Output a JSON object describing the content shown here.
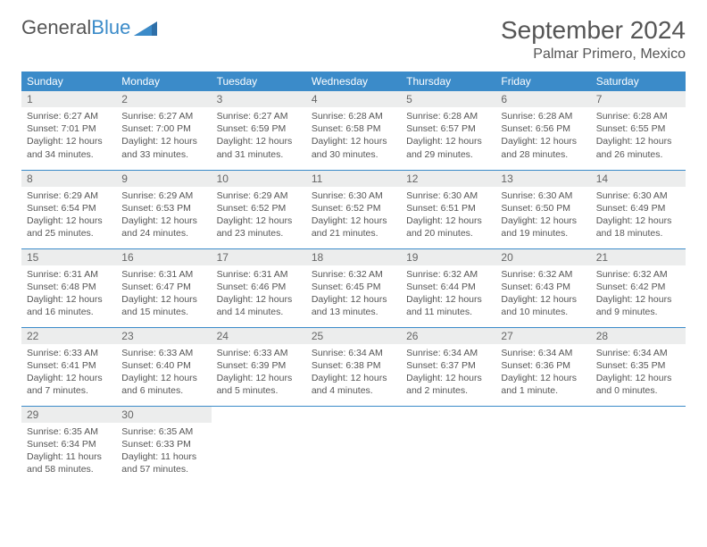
{
  "brand": {
    "part1": "General",
    "part2": "Blue"
  },
  "title": "September 2024",
  "location": "Palmar Primero, Mexico",
  "header_bg": "#3b8bc9",
  "day_names": [
    "Sunday",
    "Monday",
    "Tuesday",
    "Wednesday",
    "Thursday",
    "Friday",
    "Saturday"
  ],
  "weeks": [
    [
      {
        "n": "1",
        "sr": "Sunrise: 6:27 AM",
        "ss": "Sunset: 7:01 PM",
        "d1": "Daylight: 12 hours",
        "d2": "and 34 minutes."
      },
      {
        "n": "2",
        "sr": "Sunrise: 6:27 AM",
        "ss": "Sunset: 7:00 PM",
        "d1": "Daylight: 12 hours",
        "d2": "and 33 minutes."
      },
      {
        "n": "3",
        "sr": "Sunrise: 6:27 AM",
        "ss": "Sunset: 6:59 PM",
        "d1": "Daylight: 12 hours",
        "d2": "and 31 minutes."
      },
      {
        "n": "4",
        "sr": "Sunrise: 6:28 AM",
        "ss": "Sunset: 6:58 PM",
        "d1": "Daylight: 12 hours",
        "d2": "and 30 minutes."
      },
      {
        "n": "5",
        "sr": "Sunrise: 6:28 AM",
        "ss": "Sunset: 6:57 PM",
        "d1": "Daylight: 12 hours",
        "d2": "and 29 minutes."
      },
      {
        "n": "6",
        "sr": "Sunrise: 6:28 AM",
        "ss": "Sunset: 6:56 PM",
        "d1": "Daylight: 12 hours",
        "d2": "and 28 minutes."
      },
      {
        "n": "7",
        "sr": "Sunrise: 6:28 AM",
        "ss": "Sunset: 6:55 PM",
        "d1": "Daylight: 12 hours",
        "d2": "and 26 minutes."
      }
    ],
    [
      {
        "n": "8",
        "sr": "Sunrise: 6:29 AM",
        "ss": "Sunset: 6:54 PM",
        "d1": "Daylight: 12 hours",
        "d2": "and 25 minutes."
      },
      {
        "n": "9",
        "sr": "Sunrise: 6:29 AM",
        "ss": "Sunset: 6:53 PM",
        "d1": "Daylight: 12 hours",
        "d2": "and 24 minutes."
      },
      {
        "n": "10",
        "sr": "Sunrise: 6:29 AM",
        "ss": "Sunset: 6:52 PM",
        "d1": "Daylight: 12 hours",
        "d2": "and 23 minutes."
      },
      {
        "n": "11",
        "sr": "Sunrise: 6:30 AM",
        "ss": "Sunset: 6:52 PM",
        "d1": "Daylight: 12 hours",
        "d2": "and 21 minutes."
      },
      {
        "n": "12",
        "sr": "Sunrise: 6:30 AM",
        "ss": "Sunset: 6:51 PM",
        "d1": "Daylight: 12 hours",
        "d2": "and 20 minutes."
      },
      {
        "n": "13",
        "sr": "Sunrise: 6:30 AM",
        "ss": "Sunset: 6:50 PM",
        "d1": "Daylight: 12 hours",
        "d2": "and 19 minutes."
      },
      {
        "n": "14",
        "sr": "Sunrise: 6:30 AM",
        "ss": "Sunset: 6:49 PM",
        "d1": "Daylight: 12 hours",
        "d2": "and 18 minutes."
      }
    ],
    [
      {
        "n": "15",
        "sr": "Sunrise: 6:31 AM",
        "ss": "Sunset: 6:48 PM",
        "d1": "Daylight: 12 hours",
        "d2": "and 16 minutes."
      },
      {
        "n": "16",
        "sr": "Sunrise: 6:31 AM",
        "ss": "Sunset: 6:47 PM",
        "d1": "Daylight: 12 hours",
        "d2": "and 15 minutes."
      },
      {
        "n": "17",
        "sr": "Sunrise: 6:31 AM",
        "ss": "Sunset: 6:46 PM",
        "d1": "Daylight: 12 hours",
        "d2": "and 14 minutes."
      },
      {
        "n": "18",
        "sr": "Sunrise: 6:32 AM",
        "ss": "Sunset: 6:45 PM",
        "d1": "Daylight: 12 hours",
        "d2": "and 13 minutes."
      },
      {
        "n": "19",
        "sr": "Sunrise: 6:32 AM",
        "ss": "Sunset: 6:44 PM",
        "d1": "Daylight: 12 hours",
        "d2": "and 11 minutes."
      },
      {
        "n": "20",
        "sr": "Sunrise: 6:32 AM",
        "ss": "Sunset: 6:43 PM",
        "d1": "Daylight: 12 hours",
        "d2": "and 10 minutes."
      },
      {
        "n": "21",
        "sr": "Sunrise: 6:32 AM",
        "ss": "Sunset: 6:42 PM",
        "d1": "Daylight: 12 hours",
        "d2": "and 9 minutes."
      }
    ],
    [
      {
        "n": "22",
        "sr": "Sunrise: 6:33 AM",
        "ss": "Sunset: 6:41 PM",
        "d1": "Daylight: 12 hours",
        "d2": "and 7 minutes."
      },
      {
        "n": "23",
        "sr": "Sunrise: 6:33 AM",
        "ss": "Sunset: 6:40 PM",
        "d1": "Daylight: 12 hours",
        "d2": "and 6 minutes."
      },
      {
        "n": "24",
        "sr": "Sunrise: 6:33 AM",
        "ss": "Sunset: 6:39 PM",
        "d1": "Daylight: 12 hours",
        "d2": "and 5 minutes."
      },
      {
        "n": "25",
        "sr": "Sunrise: 6:34 AM",
        "ss": "Sunset: 6:38 PM",
        "d1": "Daylight: 12 hours",
        "d2": "and 4 minutes."
      },
      {
        "n": "26",
        "sr": "Sunrise: 6:34 AM",
        "ss": "Sunset: 6:37 PM",
        "d1": "Daylight: 12 hours",
        "d2": "and 2 minutes."
      },
      {
        "n": "27",
        "sr": "Sunrise: 6:34 AM",
        "ss": "Sunset: 6:36 PM",
        "d1": "Daylight: 12 hours",
        "d2": "and 1 minute."
      },
      {
        "n": "28",
        "sr": "Sunrise: 6:34 AM",
        "ss": "Sunset: 6:35 PM",
        "d1": "Daylight: 12 hours",
        "d2": "and 0 minutes."
      }
    ],
    [
      {
        "n": "29",
        "sr": "Sunrise: 6:35 AM",
        "ss": "Sunset: 6:34 PM",
        "d1": "Daylight: 11 hours",
        "d2": "and 58 minutes."
      },
      {
        "n": "30",
        "sr": "Sunrise: 6:35 AM",
        "ss": "Sunset: 6:33 PM",
        "d1": "Daylight: 11 hours",
        "d2": "and 57 minutes."
      },
      {
        "empty": true
      },
      {
        "empty": true
      },
      {
        "empty": true
      },
      {
        "empty": true
      },
      {
        "empty": true
      }
    ]
  ]
}
